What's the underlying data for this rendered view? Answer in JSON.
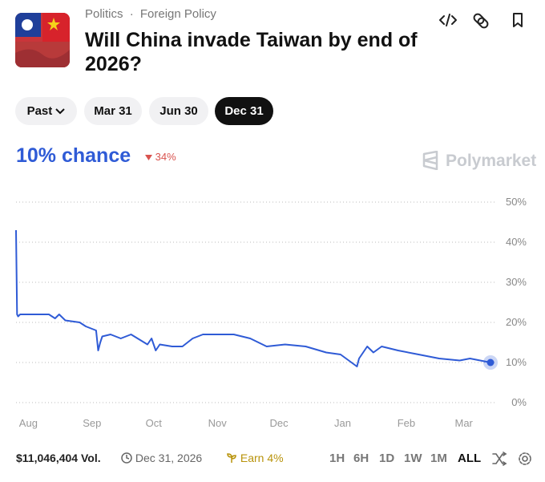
{
  "header": {
    "category": "Politics",
    "separator": "·",
    "subcategory": "Foreign Policy",
    "title": "Will China invade Taiwan by end of 2026?"
  },
  "tabs": [
    "Past",
    "Mar 31",
    "Jun 30",
    "Dec 31"
  ],
  "summary": {
    "chance": "10% chance",
    "change": "34%",
    "brand": "Polymarket"
  },
  "footer": {
    "volume": "$11,046,404 Vol.",
    "end_date": "Dec 31, 2026",
    "earn": "Earn 4%",
    "ranges": [
      "1H",
      "6H",
      "1D",
      "1W",
      "1M",
      "ALL"
    ]
  },
  "chart_data": {
    "type": "line",
    "x": [
      -6,
      -5.5,
      -5,
      -4,
      10,
      13,
      15,
      18,
      25,
      28,
      33,
      34,
      35,
      36,
      40,
      45,
      50,
      58,
      60,
      62,
      64,
      70,
      75,
      80,
      85,
      100,
      108,
      116,
      125,
      135,
      145,
      152,
      160,
      161,
      165,
      168,
      172,
      180,
      190,
      200,
      210,
      215,
      220,
      225
    ],
    "series": [
      {
        "color": "#2f5bd6",
        "values": [
          43,
          22,
          21.5,
          22,
          22,
          21,
          22,
          20.5,
          20,
          19,
          18,
          13,
          15,
          16.5,
          17,
          16,
          17,
          14.5,
          16,
          13,
          14.5,
          14,
          14,
          16,
          17,
          17,
          16,
          14,
          14.5,
          14,
          12.5,
          12,
          9,
          11,
          14,
          12.5,
          14,
          13,
          12,
          11,
          10.5,
          11,
          10.5,
          10
        ]
      }
    ],
    "xlim": [
      -6,
      225
    ],
    "xticks": [
      {
        "value": 0,
        "label": "Aug"
      },
      {
        "value": 31,
        "label": "Sep"
      },
      {
        "value": 61,
        "label": "Oct"
      },
      {
        "value": 92,
        "label": "Nov"
      },
      {
        "value": 122,
        "label": "Dec"
      },
      {
        "value": 153,
        "label": "Jan"
      },
      {
        "value": 184,
        "label": "Feb"
      },
      {
        "value": 212,
        "label": "Mar"
      }
    ],
    "ylim": [
      0,
      50
    ],
    "yticks": [
      {
        "value": 0,
        "label": "0%"
      },
      {
        "value": 10,
        "label": "10%"
      },
      {
        "value": 20,
        "label": "20%"
      },
      {
        "value": 30,
        "label": "30%"
      },
      {
        "value": 40,
        "label": "40%"
      },
      {
        "value": 50,
        "label": "50%"
      }
    ],
    "grid": true
  }
}
